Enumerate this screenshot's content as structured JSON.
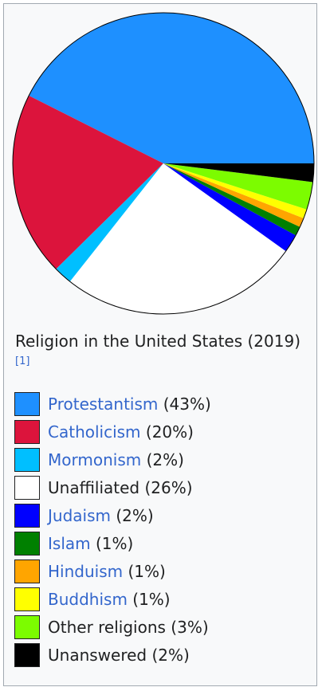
{
  "caption": {
    "title": "Religion in the United States (2019)",
    "ref": "[1]"
  },
  "chart_data": {
    "type": "pie",
    "title": "Religion in the United States (2019)",
    "slices": [
      {
        "label": "Protestantism",
        "value": 43,
        "percent_label": "(43%)",
        "color": "#1e90ff",
        "link": true
      },
      {
        "label": "Catholicism",
        "value": 20,
        "percent_label": "(20%)",
        "color": "#dc143c",
        "link": true
      },
      {
        "label": "Mormonism",
        "value": 2,
        "percent_label": "(2%)",
        "color": "#00bfff",
        "link": true
      },
      {
        "label": "Unaffiliated",
        "value": 26,
        "percent_label": "(26%)",
        "color": "#ffffff",
        "link": false
      },
      {
        "label": "Judaism",
        "value": 2,
        "percent_label": "(2%)",
        "color": "#0000ff",
        "link": true
      },
      {
        "label": "Islam",
        "value": 1,
        "percent_label": "(1%)",
        "color": "#008000",
        "link": true
      },
      {
        "label": "Hinduism",
        "value": 1,
        "percent_label": "(1%)",
        "color": "#ffa500",
        "link": true
      },
      {
        "label": "Buddhism",
        "value": 1,
        "percent_label": "(1%)",
        "color": "#ffff00",
        "link": true
      },
      {
        "label": "Other religions",
        "value": 3,
        "percent_label": "(3%)",
        "color": "#7cfc00",
        "link": false
      },
      {
        "label": "Unanswered",
        "value": 2,
        "percent_label": "(2%)",
        "color": "#000000",
        "link": false
      }
    ],
    "start_direction": "3 o'clock",
    "direction": "counterclockwise",
    "legend_placement": "below"
  }
}
